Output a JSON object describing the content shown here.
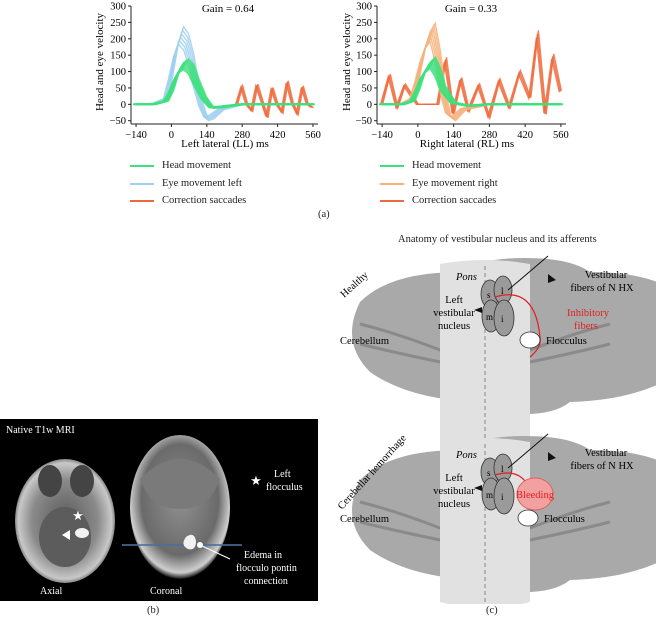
{
  "panel_a": {
    "label": "(a)",
    "left_chart": {
      "gain_text": "Gain = 0.64",
      "ylabel": "Head and eye velocity",
      "xlabel": "Left lateral (LL) ms",
      "xticks": [
        "−140",
        "0",
        "140",
        "280",
        "420",
        "560"
      ],
      "yticks": [
        "300",
        "250",
        "200",
        "150",
        "100",
        "50",
        "0",
        "−50"
      ],
      "legend": [
        {
          "label": "Head movement",
          "color": "#3de07c"
        },
        {
          "label": "Eye movement left",
          "color": "#9fd0ee"
        },
        {
          "label": "Correction saccades",
          "color": "#ee6a3c"
        }
      ]
    },
    "right_chart": {
      "gain_text": "Gain = 0.33",
      "ylabel": "Head and eye velocity",
      "xlabel": "Right lateral (RL) ms",
      "xticks": [
        "−140",
        "0",
        "140",
        "280",
        "420",
        "560"
      ],
      "yticks": [
        "300",
        "250",
        "200",
        "150",
        "100",
        "50",
        "0",
        "−50"
      ],
      "legend": [
        {
          "label": "Head movement",
          "color": "#3de07c"
        },
        {
          "label": "Eye movement right",
          "color": "#f6b07a"
        },
        {
          "label": "Correction saccades",
          "color": "#ee6a3c"
        }
      ]
    }
  },
  "chart_data": [
    {
      "type": "line",
      "title": "Gain = 0.64",
      "xlabel": "Left lateral (LL) ms",
      "ylabel": "Head and eye velocity",
      "xlim": [
        -160,
        580
      ],
      "ylim": [
        -60,
        300
      ],
      "series": [
        {
          "name": "Head movement",
          "color": "#3de07c",
          "x": [
            -140,
            -70,
            -20,
            0,
            20,
            40,
            60,
            80,
            100,
            130,
            160,
            200,
            280,
            420,
            560
          ],
          "y": [
            0,
            0,
            10,
            40,
            85,
            115,
            125,
            110,
            70,
            20,
            -10,
            -8,
            0,
            0,
            0
          ]
        },
        {
          "name": "Eye movement left",
          "color": "#9fd0ee",
          "x": [
            -140,
            -70,
            -20,
            0,
            20,
            40,
            60,
            80,
            100,
            120,
            140,
            160,
            200,
            280,
            560
          ],
          "y": [
            0,
            0,
            20,
            90,
            170,
            215,
            195,
            140,
            60,
            -5,
            -45,
            -40,
            -15,
            0,
            0
          ]
        },
        {
          "name": "Correction saccades",
          "color": "#ee6a3c",
          "x": [
            260,
            280,
            300,
            320,
            340,
            360,
            380,
            400,
            420,
            440,
            460,
            480,
            500,
            520,
            540,
            560
          ],
          "y": [
            0,
            55,
            0,
            -20,
            60,
            10,
            -40,
            50,
            0,
            -25,
            70,
            5,
            -30,
            55,
            0,
            -10
          ]
        }
      ]
    },
    {
      "type": "line",
      "title": "Gain = 0.33",
      "xlabel": "Right lateral (RL) ms",
      "ylabel": "Head and eye velocity",
      "xlim": [
        -160,
        580
      ],
      "ylim": [
        -60,
        300
      ],
      "series": [
        {
          "name": "Head movement",
          "color": "#3de07c",
          "x": [
            -140,
            -60,
            -20,
            0,
            20,
            40,
            60,
            80,
            100,
            140,
            200,
            280,
            420,
            560
          ],
          "y": [
            0,
            0,
            10,
            45,
            90,
            115,
            130,
            100,
            50,
            5,
            -5,
            0,
            0,
            0
          ]
        },
        {
          "name": "Eye movement right",
          "color": "#f6b07a",
          "x": [
            -140,
            -60,
            -20,
            0,
            20,
            40,
            60,
            80,
            100,
            120,
            140,
            180,
            280,
            560
          ],
          "y": [
            0,
            0,
            20,
            80,
            150,
            200,
            225,
            150,
            40,
            -30,
            -45,
            -15,
            0,
            0
          ]
        },
        {
          "name": "Correction saccades",
          "color": "#ee6a3c",
          "x": [
            -140,
            -110,
            -80,
            -50,
            0,
            80,
            110,
            140,
            170,
            200,
            240,
            280,
            320,
            360,
            400,
            440,
            470,
            500,
            530,
            560
          ],
          "y": [
            0,
            90,
            -10,
            60,
            0,
            0,
            140,
            -30,
            80,
            -20,
            60,
            -40,
            75,
            -10,
            100,
            20,
            220,
            -30,
            150,
            40
          ]
        }
      ]
    }
  ],
  "panel_b": {
    "label": "(b)",
    "title": "Native T1w MRI",
    "axial_label": "Axial",
    "coronal_label": "Coronal",
    "star_legend_line1": "Left",
    "star_legend_line2": "flocculus",
    "edema_line1": "Edema in",
    "edema_line2": "flocculo pontin",
    "edema_line3": "connection"
  },
  "panel_c": {
    "label": "(c)",
    "title": "Anatomy of vestibular nucleus and its afferents",
    "healthy": {
      "side_label": "Healthy",
      "pons": "Pons",
      "nucleus_line1": "Left",
      "nucleus_line2": "vestibular",
      "nucleus_line3": "nucleus",
      "cerebellum": "Cerebellum",
      "fibers_line1": "Vestibular",
      "fibers_line2": "fibers of N HX",
      "inhib_line1": "Inhibitory",
      "inhib_line2": "fibers",
      "flocculus": "Flocculus",
      "nuc_s": "s",
      "nuc_l": "l",
      "nuc_m": "m",
      "nuc_i": "i"
    },
    "hemorrhage": {
      "side_label": "Cerebellar hemorrhage",
      "pons": "Pons",
      "nucleus_line1": "Left",
      "nucleus_line2": "vestibular",
      "nucleus_line3": "nucleus",
      "cerebellum": "Cerebellum",
      "fibers_line1": "Vestibular",
      "fibers_line2": "fibers of N HX",
      "bleeding": "Bleeding",
      "flocculus": "Flocculus",
      "nuc_s": "s",
      "nuc_l": "l",
      "nuc_m": "m",
      "nuc_i": "i"
    }
  },
  "colors": {
    "head": "#3de07c",
    "eye_left": "#9fd0ee",
    "eye_right": "#f6b07a",
    "saccade": "#ee6a3c",
    "brain": "#9e9e9e",
    "brain_dark": "#7a7a7a",
    "pons": "#dedede",
    "red": "#e02020"
  }
}
